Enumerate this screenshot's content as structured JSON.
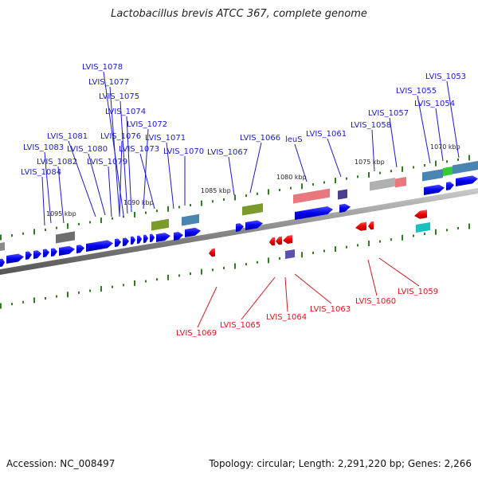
{
  "title": "Lactobacillus brevis ATCC 367, complete genome",
  "footer": {
    "accession": "Accession: NC_008497",
    "summary": "Topology: circular; Length: 2,291,220 bp; Genes: 2,266"
  },
  "kbp_labels": [
    "1095 kbp",
    "1090 kbp",
    "1085 kbp",
    "1080 kbp",
    "1075 kbp",
    "1070 kbp"
  ],
  "forward_labels": [
    "LVIS_1078",
    "LVIS_1077",
    "LVIS_1075",
    "LVIS_1074",
    "LVIS_1072",
    "LVIS_1081",
    "LVIS_1076",
    "LVIS_1071",
    "LVIS_1083",
    "LVIS_1080",
    "LVIS_1073",
    "LVIS_1070",
    "LVIS_1082",
    "LVIS_1079",
    "LVIS_1084",
    "LVIS_1067",
    "LVIS_1066",
    "leuS",
    "LVIS_1061",
    "LVIS_1058",
    "LVIS_1057",
    "LVIS_1055",
    "LVIS_1054",
    "LVIS_1053"
  ],
  "reverse_labels": [
    "LVIS_1069",
    "LVIS_1065",
    "LVIS_1064",
    "LVIS_1063",
    "LVIS_1060",
    "LVIS_1059"
  ],
  "colors": {
    "forward": "#1a1acc",
    "reverse": "#d21a1a",
    "gene_forward": "#0000ee",
    "gene_reverse": "#ee0000",
    "tick": "#2e7d1e",
    "backbone": "#888888"
  }
}
